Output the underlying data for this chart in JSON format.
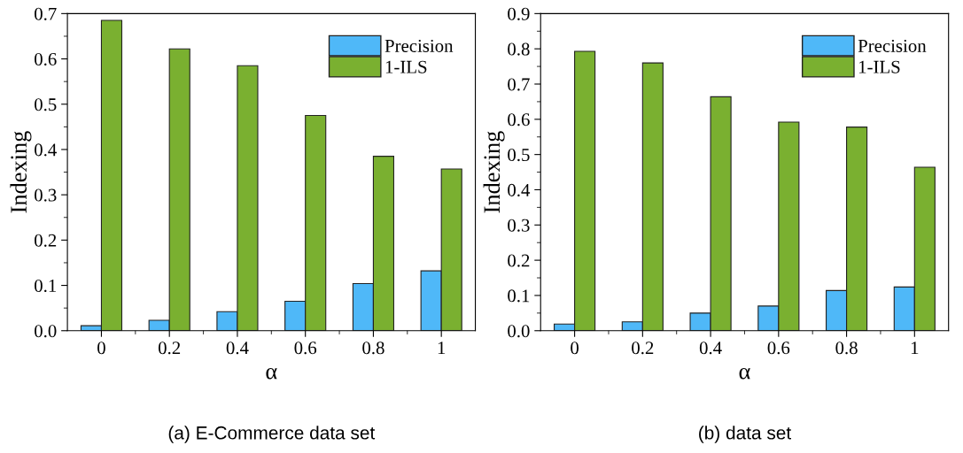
{
  "chart_data": [
    {
      "type": "bar",
      "title": "(a) E-Commerce data set",
      "xlabel": "α",
      "ylabel": "Indexing",
      "categories": [
        "0",
        "0.2",
        "0.4",
        "0.6",
        "0.8",
        "1"
      ],
      "series": [
        {
          "name": "Precision",
          "color": "#4fb8f8",
          "values": [
            0.011,
            0.023,
            0.042,
            0.065,
            0.104,
            0.132
          ]
        },
        {
          "name": "1-ILS",
          "color": "#7ab030",
          "values": [
            0.685,
            0.622,
            0.585,
            0.475,
            0.385,
            0.357
          ]
        }
      ],
      "ylim": [
        0,
        0.7
      ],
      "yticks": [
        {
          "value": 0,
          "label": "0.0"
        },
        0.1,
        0.2,
        0.3,
        0.4,
        0.5,
        0.6,
        0.7
      ],
      "legend": "top right",
      "grid": false
    },
    {
      "type": "bar",
      "title": "(b) data set",
      "xlabel": "α",
      "ylabel": "Indexing",
      "categories": [
        "0",
        "0.2",
        "0.4",
        "0.6",
        "0.8",
        "1"
      ],
      "series": [
        {
          "name": "Precision",
          "color": "#4fb8f8",
          "values": [
            0.019,
            0.025,
            0.05,
            0.07,
            0.114,
            0.124
          ]
        },
        {
          "name": "1-ILS",
          "color": "#7ab030",
          "values": [
            0.793,
            0.76,
            0.664,
            0.592,
            0.578,
            0.464
          ]
        }
      ],
      "ylim": [
        0,
        0.9
      ],
      "yticks": [
        {
          "value": 0,
          "label": "0.0"
        },
        0.1,
        0.2,
        0.3,
        0.4,
        0.5,
        0.6,
        0.7,
        0.8,
        0.9
      ],
      "legend": "top right",
      "grid": false
    }
  ]
}
